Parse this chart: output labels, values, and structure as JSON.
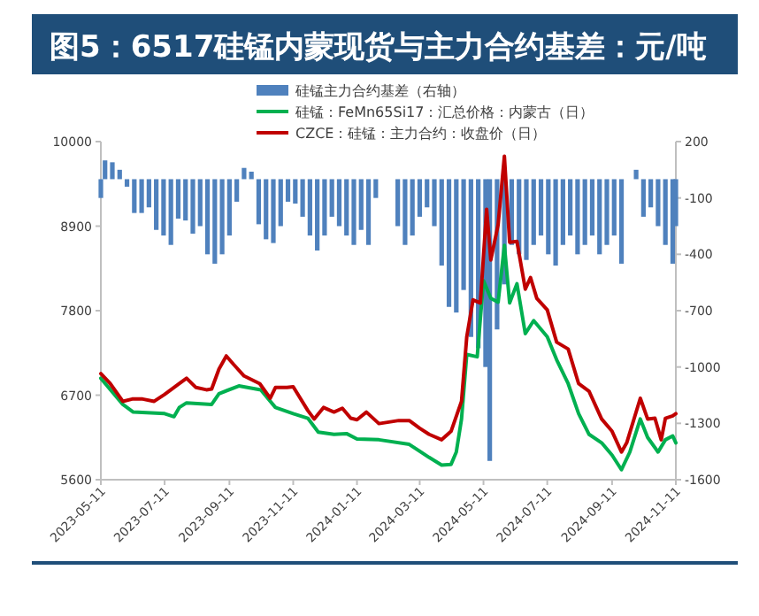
{
  "chart_data": {
    "type": "line",
    "title": "图5：6517硅锰内蒙现货与主力合约基差：元/吨",
    "xlim": [
      "2023-05-11",
      "2024-11-11"
    ],
    "xticks": [
      "2023-05-11",
      "2023-07-11",
      "2023-09-11",
      "2023-11-11",
      "2024-01-11",
      "2024-03-11",
      "2024-05-11",
      "2024-07-11",
      "2024-09-11",
      "2024-11-11"
    ],
    "ylim": [
      5600,
      10000
    ],
    "yticks": [
      5600,
      6700,
      7800,
      8900,
      10000
    ],
    "y2lim": [
      -1600,
      200
    ],
    "y2ticks": [
      -1600,
      -1300,
      -1000,
      -700,
      -400,
      -100,
      200
    ],
    "legend": "top",
    "series": [
      {
        "name": "硅锰主力合约基差（右轴）",
        "type": "bar",
        "axis": "y2",
        "color": "#4f81bd",
        "x": [
          "2023-05-11",
          "2023-05-15",
          "2023-05-22",
          "2023-05-29",
          "2023-06-05",
          "2023-06-12",
          "2023-06-19",
          "2023-06-26",
          "2023-07-03",
          "2023-07-10",
          "2023-07-17",
          "2023-07-24",
          "2023-07-31",
          "2023-08-07",
          "2023-08-14",
          "2023-08-21",
          "2023-08-28",
          "2023-09-04",
          "2023-09-11",
          "2023-09-18",
          "2023-09-25",
          "2023-10-02",
          "2023-10-09",
          "2023-10-16",
          "2023-10-23",
          "2023-10-30",
          "2023-11-06",
          "2023-11-13",
          "2023-11-20",
          "2023-11-27",
          "2023-12-04",
          "2023-12-11",
          "2023-12-18",
          "2023-12-25",
          "2024-01-01",
          "2024-01-08",
          "2024-01-15",
          "2024-01-22",
          "2024-01-29",
          "2024-02-19",
          "2024-02-26",
          "2024-03-04",
          "2024-03-11",
          "2024-03-18",
          "2024-03-25",
          "2024-04-01",
          "2024-04-08",
          "2024-04-15",
          "2024-04-22",
          "2024-04-29",
          "2024-05-06",
          "2024-05-13",
          "2024-05-17",
          "2024-05-24",
          "2024-05-31",
          "2024-06-07",
          "2024-06-14",
          "2024-06-21",
          "2024-06-28",
          "2024-07-05",
          "2024-07-12",
          "2024-07-19",
          "2024-07-26",
          "2024-08-02",
          "2024-08-09",
          "2024-08-16",
          "2024-08-23",
          "2024-08-30",
          "2024-09-06",
          "2024-09-13",
          "2024-09-20",
          "2024-10-04",
          "2024-10-11",
          "2024-10-18",
          "2024-10-25",
          "2024-11-01",
          "2024-11-08",
          "2024-11-11"
        ],
        "values": [
          -100,
          100,
          90,
          50,
          -40,
          -180,
          -180,
          -150,
          -270,
          -300,
          -350,
          -210,
          -220,
          -290,
          -250,
          -400,
          -450,
          -400,
          -300,
          -120,
          60,
          40,
          -240,
          -320,
          -340,
          -250,
          -120,
          -130,
          -200,
          -300,
          -380,
          -300,
          -200,
          -250,
          -300,
          -350,
          -270,
          -350,
          -100,
          -250,
          -350,
          -300,
          -200,
          -150,
          -250,
          -460,
          -680,
          -710,
          -590,
          -840,
          -900,
          -1000,
          -1500,
          -800,
          -560,
          -350,
          -400,
          -430,
          -350,
          -300,
          -400,
          -460,
          -350,
          -300,
          -400,
          -350,
          -300,
          -400,
          -350,
          -300,
          -450,
          50,
          -200,
          -150,
          -250,
          -350,
          -450,
          -250
        ]
      },
      {
        "name": "硅锰：FeMn65Si17：汇总价格：内蒙古（日）",
        "color": "#00b050",
        "x": [
          "2023-05-11",
          "2023-06-01",
          "2023-06-11",
          "2023-07-11",
          "2023-07-20",
          "2023-07-25",
          "2023-08-01",
          "2023-08-25",
          "2023-09-01",
          "2023-09-20",
          "2023-10-11",
          "2023-10-25",
          "2023-11-11",
          "2023-11-25",
          "2023-12-05",
          "2023-12-20",
          "2024-01-01",
          "2024-01-11",
          "2024-02-01",
          "2024-03-01",
          "2024-03-20",
          "2024-04-01",
          "2024-04-10",
          "2024-04-15",
          "2024-04-20",
          "2024-04-25",
          "2024-05-05",
          "2024-05-11",
          "2024-05-18",
          "2024-05-25",
          "2024-05-31",
          "2024-06-05",
          "2024-06-12",
          "2024-06-20",
          "2024-06-28",
          "2024-07-11",
          "2024-07-20",
          "2024-07-31",
          "2024-08-10",
          "2024-08-20",
          "2024-09-01",
          "2024-09-11",
          "2024-09-20",
          "2024-09-28",
          "2024-10-08",
          "2024-10-15",
          "2024-10-25",
          "2024-11-01",
          "2024-11-08",
          "2024-11-11"
        ],
        "values": [
          6920,
          6580,
          6480,
          6460,
          6420,
          6540,
          6600,
          6580,
          6720,
          6820,
          6770,
          6540,
          6460,
          6400,
          6220,
          6190,
          6200,
          6130,
          6120,
          6060,
          5890,
          5790,
          5800,
          5960,
          6390,
          7230,
          7200,
          8190,
          7960,
          7910,
          8650,
          7900,
          8150,
          7500,
          7670,
          7460,
          7160,
          6850,
          6460,
          6190,
          6080,
          5920,
          5730,
          5960,
          6390,
          6150,
          5960,
          6120,
          6170,
          6080
        ]
      },
      {
        "name": "CZCE：硅锰：主力合约：收盘价（日）",
        "color": "#c00000",
        "x": [
          "2023-05-11",
          "2023-05-20",
          "2023-06-01",
          "2023-06-10",
          "2023-06-20",
          "2023-07-01",
          "2023-07-11",
          "2023-07-25",
          "2023-08-01",
          "2023-08-10",
          "2023-08-20",
          "2023-08-25",
          "2023-09-01",
          "2023-09-08",
          "2023-09-15",
          "2023-09-25",
          "2023-10-10",
          "2023-10-20",
          "2023-10-25",
          "2023-11-05",
          "2023-11-11",
          "2023-11-25",
          "2023-12-01",
          "2023-12-10",
          "2023-12-20",
          "2023-12-28",
          "2024-01-05",
          "2024-01-11",
          "2024-01-20",
          "2024-02-01",
          "2024-02-20",
          "2024-03-01",
          "2024-03-11",
          "2024-03-20",
          "2024-04-01",
          "2024-04-10",
          "2024-04-20",
          "2024-04-25",
          "2024-05-01",
          "2024-05-08",
          "2024-05-14",
          "2024-05-18",
          "2024-05-25",
          "2024-05-31",
          "2024-06-05",
          "2024-06-12",
          "2024-06-20",
          "2024-06-25",
          "2024-07-01",
          "2024-07-11",
          "2024-07-20",
          "2024-07-31",
          "2024-08-10",
          "2024-08-20",
          "2024-09-01",
          "2024-09-11",
          "2024-09-20",
          "2024-09-25",
          "2024-10-08",
          "2024-10-15",
          "2024-10-22",
          "2024-10-28",
          "2024-11-01",
          "2024-11-08",
          "2024-11-11"
        ],
        "values": [
          6980,
          6850,
          6620,
          6650,
          6650,
          6620,
          6710,
          6850,
          6920,
          6800,
          6770,
          6780,
          7040,
          7210,
          7100,
          6950,
          6850,
          6660,
          6800,
          6800,
          6810,
          6500,
          6390,
          6540,
          6480,
          6530,
          6400,
          6380,
          6480,
          6330,
          6370,
          6370,
          6270,
          6190,
          6120,
          6230,
          6620,
          7460,
          7940,
          7900,
          9120,
          8460,
          8920,
          9810,
          8690,
          8700,
          8080,
          8230,
          7960,
          7810,
          7390,
          7300,
          6850,
          6750,
          6390,
          6230,
          5960,
          6080,
          6660,
          6390,
          6400,
          6120,
          6400,
          6430,
          6460
        ]
      }
    ]
  }
}
